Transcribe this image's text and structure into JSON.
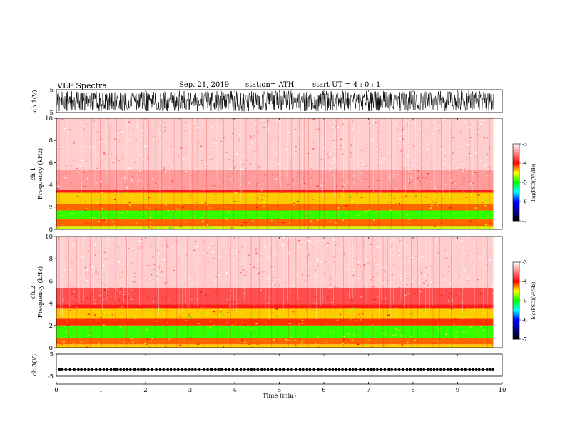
{
  "header": {
    "title": "VLF  Spectra",
    "date": "Sep. 21, 2019",
    "station": "station= ATH",
    "start": "start  UT  =   4  : 0   : 1"
  },
  "colors": {
    "background": "#ffffff",
    "waveform": "#000000",
    "psd_high": "#ffffff",
    "psd_red": "#ff0000",
    "psd_yellow": "#ffff00",
    "psd_green": "#00ff00",
    "psd_cyan": "#00ffff",
    "psd_blue": "#0000ff",
    "psd_low": "#000000"
  },
  "chart_data": [
    {
      "type": "line",
      "panel": "ch1-waveform",
      "ylabel": "ch.1(V)",
      "ylim": [
        -5,
        5
      ],
      "yticks": [
        "5",
        "-5"
      ],
      "xlim": [
        0,
        10
      ],
      "data_end_min": 9.8,
      "amplitude_envelope_V": [
        -4.5,
        4.5
      ],
      "series": [
        {
          "values_summary": "continuous broadband noise, peak amplitude about ±4.5 V"
        }
      ]
    },
    {
      "type": "heatmap",
      "panel": "ch1-spectrogram",
      "ylabel": "ch.1\nFrequency (kHz)",
      "ylim": [
        0,
        10
      ],
      "yticks": [
        "10",
        "8",
        "6",
        "4",
        "2",
        "0"
      ],
      "xlim": [
        0,
        10
      ],
      "data_end_min": 9.8,
      "colorbar": {
        "label": "log(PSD)(V²/Hz)",
        "range": [
          -7,
          -3
        ],
        "ticks": [
          "-3",
          "-4",
          "-5",
          "-6",
          "-7"
        ]
      },
      "bands_khz": [
        {
          "from": 0.0,
          "to": 0.3,
          "logpsd": -4.6
        },
        {
          "from": 0.3,
          "to": 0.9,
          "logpsd": -4.2
        },
        {
          "from": 0.9,
          "to": 1.7,
          "logpsd": -4.9
        },
        {
          "from": 1.7,
          "to": 2.3,
          "logpsd": -4.2
        },
        {
          "from": 2.3,
          "to": 3.3,
          "logpsd": -4.4
        },
        {
          "from": 3.3,
          "to": 3.6,
          "logpsd": -3.9
        },
        {
          "from": 3.6,
          "to": 5.4,
          "logpsd": -3.4
        },
        {
          "from": 5.4,
          "to": 10.0,
          "logpsd": -3.2
        }
      ]
    },
    {
      "type": "heatmap",
      "panel": "ch2-spectrogram",
      "ylabel": "ch.2\nFrequency (kHz)",
      "ylim": [
        0,
        10
      ],
      "yticks": [
        "10",
        "8",
        "6",
        "4",
        "2",
        "0"
      ],
      "xlim": [
        0,
        10
      ],
      "data_end_min": 9.8,
      "colorbar": {
        "label": "log(PSD)(V²/Hz)",
        "range": [
          -7,
          -3
        ],
        "ticks": [
          "-3",
          "-4",
          "-5",
          "-6",
          "-7"
        ]
      },
      "bands_khz": [
        {
          "from": 0.0,
          "to": 0.3,
          "logpsd": -4.4
        },
        {
          "from": 0.3,
          "to": 0.9,
          "logpsd": -4.2
        },
        {
          "from": 0.9,
          "to": 2.0,
          "logpsd": -4.9
        },
        {
          "from": 2.0,
          "to": 2.6,
          "logpsd": -4.1
        },
        {
          "from": 2.6,
          "to": 3.5,
          "logpsd": -4.4
        },
        {
          "from": 3.5,
          "to": 3.9,
          "logpsd": -3.9
        },
        {
          "from": 3.9,
          "to": 5.4,
          "logpsd": -3.7
        },
        {
          "from": 5.4,
          "to": 10.0,
          "logpsd": -3.2
        }
      ]
    },
    {
      "type": "line",
      "panel": "ch3-waveform",
      "ylabel": "ch.3(V)",
      "ylim": [
        -5,
        5
      ],
      "yticks": [
        "5",
        "-5"
      ],
      "xlim": [
        0,
        10
      ],
      "xlabel": "Time  (min)",
      "xticks": [
        "0",
        "1",
        "2",
        "3",
        "4",
        "5",
        "6",
        "7",
        "8",
        "9",
        "10"
      ],
      "data_end_min": 9.8,
      "series": [
        {
          "values_summary": "near-constant level about -2 V with small pulses"
        }
      ]
    }
  ]
}
